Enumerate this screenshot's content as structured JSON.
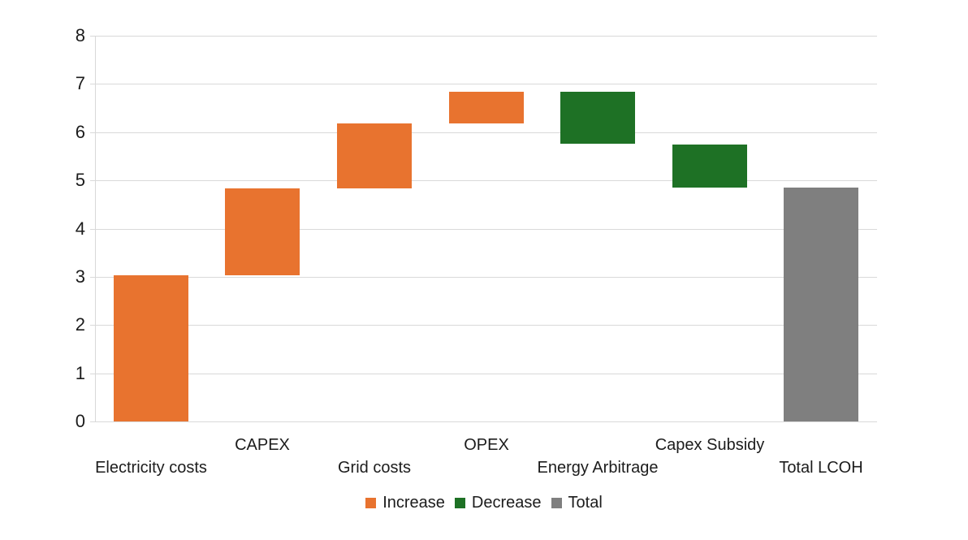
{
  "chart_data": {
    "type": "bar",
    "variant": "waterfall",
    "title": "",
    "xlabel": "",
    "ylabel": "",
    "categories": [
      "Electricity costs",
      "CAPEX",
      "Grid costs",
      "OPEX",
      "Energy Arbitrage",
      "Capex Subsidy",
      "Total LCOH"
    ],
    "bars": [
      {
        "label": "Electricity costs",
        "kind": "increase",
        "value": 3.03,
        "start": 0,
        "end": 3.03,
        "label_row": "lower"
      },
      {
        "label": "CAPEX",
        "kind": "increase",
        "value": 1.8,
        "start": 3.03,
        "end": 4.83,
        "label_row": "upper"
      },
      {
        "label": "Grid costs",
        "kind": "increase",
        "value": 1.35,
        "start": 4.83,
        "end": 6.18,
        "label_row": "lower"
      },
      {
        "label": "OPEX",
        "kind": "increase",
        "value": 0.65,
        "start": 6.18,
        "end": 6.83,
        "label_row": "upper"
      },
      {
        "label": "Energy Arbitrage",
        "kind": "decrease",
        "value": -1.08,
        "start": 6.83,
        "end": 5.75,
        "label_row": "lower"
      },
      {
        "label": "Capex Subsidy",
        "kind": "decrease",
        "value": -0.9,
        "start": 5.75,
        "end": 4.85,
        "label_row": "upper"
      },
      {
        "label": "Total LCOH",
        "kind": "total",
        "value": 4.85,
        "start": 0,
        "end": 4.85,
        "label_row": "lower"
      }
    ],
    "y_axis": {
      "min": 0,
      "max": 8,
      "ticks": [
        0,
        1,
        2,
        3,
        4,
        5,
        6,
        7,
        8
      ]
    },
    "grid": true,
    "legend_position": "bottom-center",
    "legend": [
      {
        "label": "Increase",
        "color_key": "increase"
      },
      {
        "label": "Decrease",
        "color_key": "decrease"
      },
      {
        "label": "Total",
        "color_key": "total"
      }
    ],
    "colors": {
      "increase": "#e8732f",
      "decrease": "#1e7125",
      "total": "#7f7f7f",
      "gridline": "#d9d9d9",
      "text": "#1c1c1c",
      "background": "#ffffff"
    }
  }
}
